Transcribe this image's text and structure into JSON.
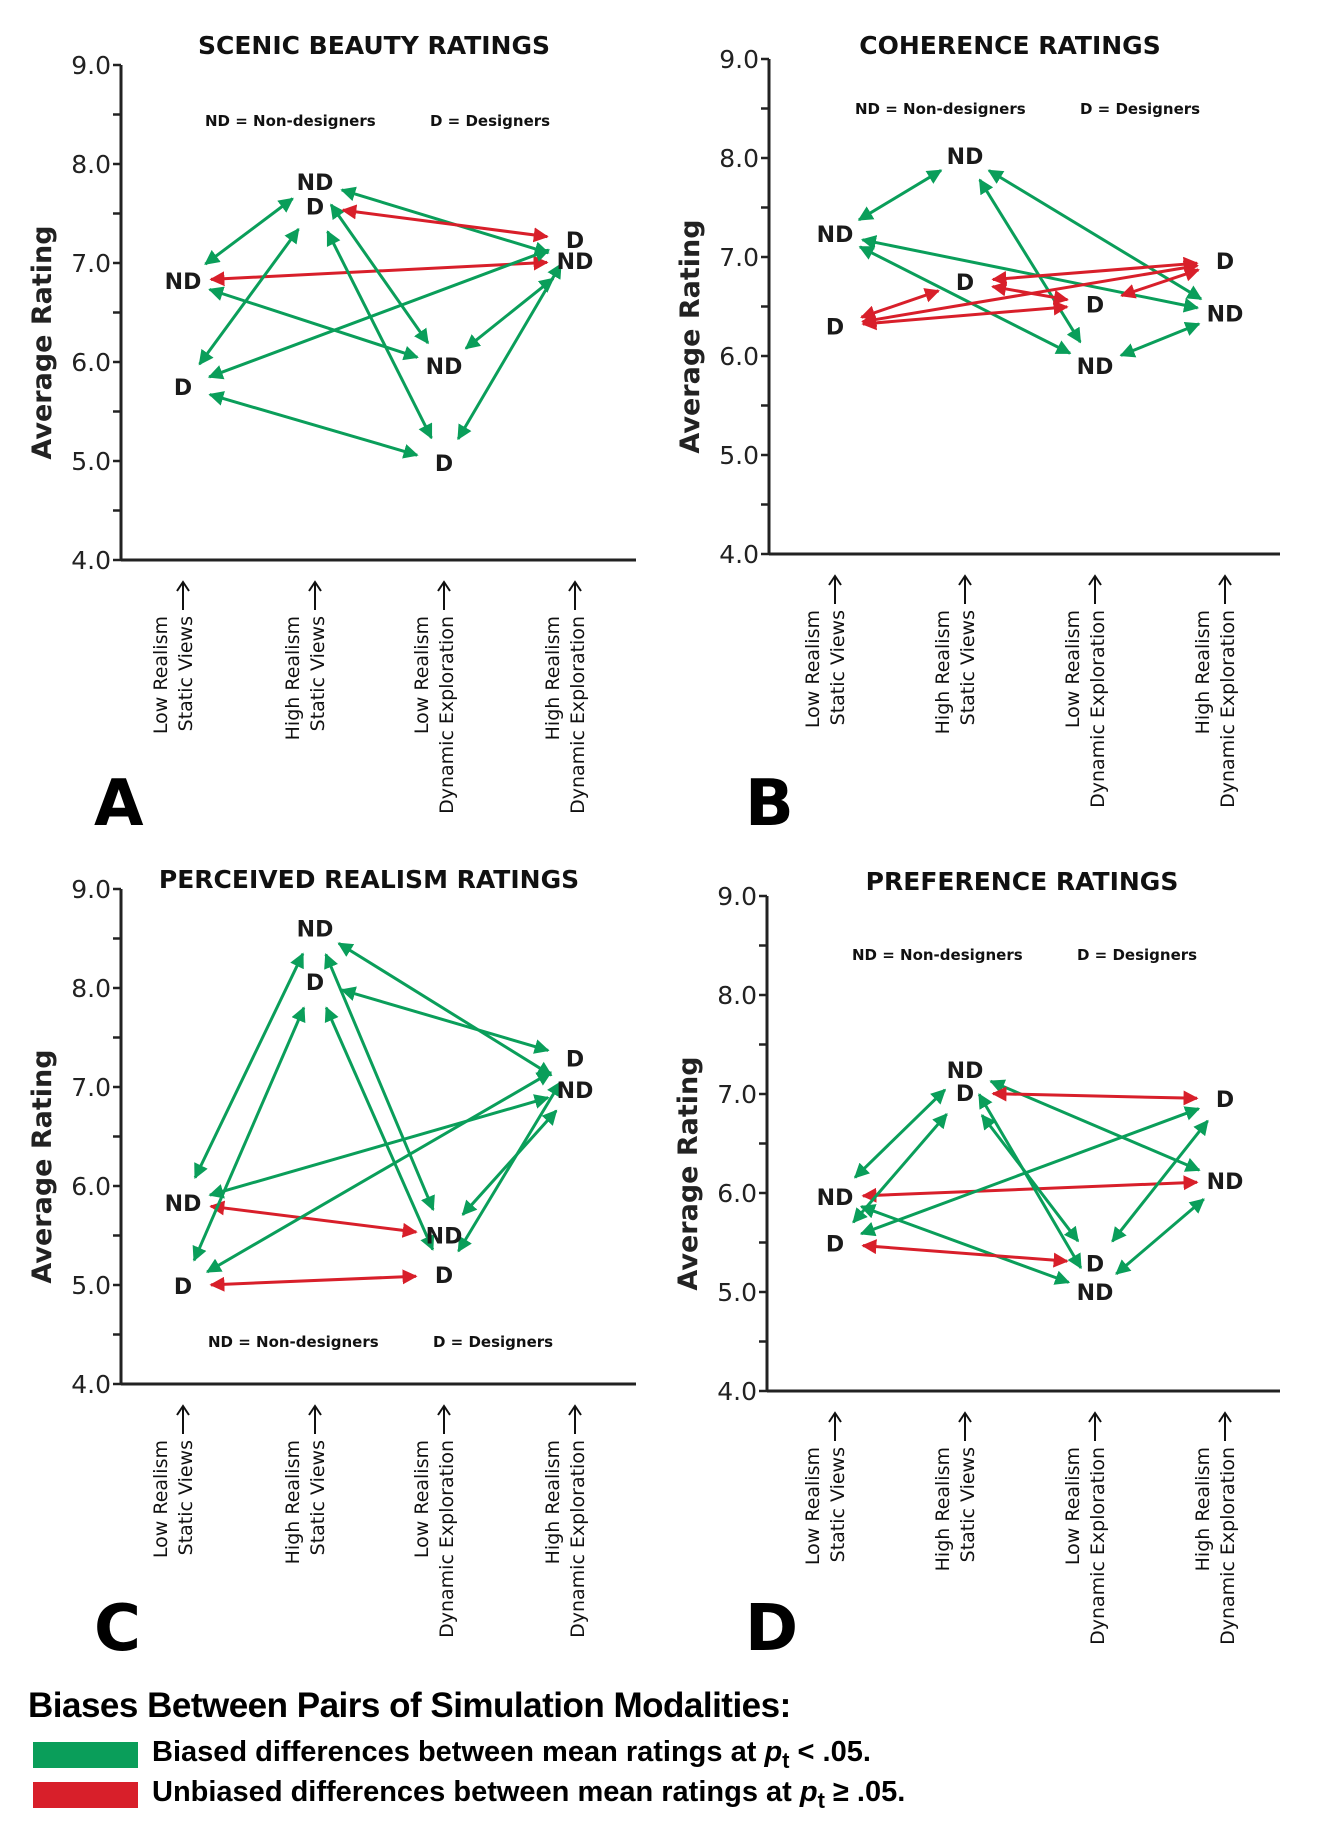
{
  "chart_data": [
    {
      "type": "scatter",
      "panel": "A",
      "title": "SCENIC BEAUTY RATINGS",
      "ylabel": "Average Rating",
      "ylim": [
        4.0,
        9.0
      ],
      "yticks": [
        "9.0",
        "8.0",
        "7.0",
        "6.0",
        "5.0",
        "4.0"
      ],
      "key": {
        "nd": "ND = Non-designers",
        "d": "D = Designers"
      },
      "key_position": "top",
      "categories": [
        "Low Realism\nStatic Views",
        "High Realism\nStatic Views",
        "Low Realism\nDynamic Exploration",
        "High Realism\nDynamic Exploration"
      ],
      "series": [
        {
          "name": "ND",
          "values": [
            6.82,
            7.82,
            5.96,
            7.02
          ]
        },
        {
          "name": "D",
          "values": [
            5.75,
            7.57,
            4.98,
            7.23
          ]
        }
      ],
      "comparisons": [
        {
          "group": "ND",
          "from": 0,
          "to": 1,
          "biased": true
        },
        {
          "group": "ND",
          "from": 0,
          "to": 2,
          "biased": true
        },
        {
          "group": "ND",
          "from": 0,
          "to": 3,
          "biased": false
        },
        {
          "group": "ND",
          "from": 1,
          "to": 2,
          "biased": true
        },
        {
          "group": "ND",
          "from": 1,
          "to": 3,
          "biased": true
        },
        {
          "group": "ND",
          "from": 2,
          "to": 3,
          "biased": true
        },
        {
          "group": "D",
          "from": 0,
          "to": 1,
          "biased": true
        },
        {
          "group": "D",
          "from": 0,
          "to": 2,
          "biased": true
        },
        {
          "group": "D",
          "from": 0,
          "to": 3,
          "biased": true
        },
        {
          "group": "D",
          "from": 1,
          "to": 2,
          "biased": true
        },
        {
          "group": "D",
          "from": 1,
          "to": 3,
          "biased": false
        },
        {
          "group": "D",
          "from": 2,
          "to": 3,
          "biased": true
        }
      ]
    },
    {
      "type": "scatter",
      "panel": "B",
      "title": "COHERENCE RATINGS",
      "ylabel": "Average Rating",
      "ylim": [
        4.0,
        9.0
      ],
      "yticks": [
        "9.0",
        "8.0",
        "7.0",
        "6.0",
        "5.0",
        "4.0"
      ],
      "key": {
        "nd": "ND = Non-designers",
        "d": "D = Designers"
      },
      "key_position": "top",
      "categories": [
        "Low Realism\nStatic Views",
        "High Realism\nStatic Views",
        "Low Realism\nDynamic Exploration",
        "High Realism\nDynamic Exploration"
      ],
      "series": [
        {
          "name": "ND",
          "values": [
            7.23,
            8.02,
            5.9,
            6.43
          ]
        },
        {
          "name": "D",
          "values": [
            6.3,
            6.75,
            6.52,
            6.96
          ]
        }
      ],
      "comparisons": [
        {
          "group": "ND",
          "from": 0,
          "to": 1,
          "biased": true
        },
        {
          "group": "ND",
          "from": 0,
          "to": 2,
          "biased": true
        },
        {
          "group": "ND",
          "from": 0,
          "to": 3,
          "biased": true
        },
        {
          "group": "ND",
          "from": 1,
          "to": 2,
          "biased": true
        },
        {
          "group": "ND",
          "from": 1,
          "to": 3,
          "biased": true
        },
        {
          "group": "ND",
          "from": 2,
          "to": 3,
          "biased": true
        },
        {
          "group": "D",
          "from": 0,
          "to": 1,
          "biased": false
        },
        {
          "group": "D",
          "from": 0,
          "to": 2,
          "biased": false
        },
        {
          "group": "D",
          "from": 0,
          "to": 3,
          "biased": false
        },
        {
          "group": "D",
          "from": 1,
          "to": 2,
          "biased": false
        },
        {
          "group": "D",
          "from": 1,
          "to": 3,
          "biased": false
        },
        {
          "group": "D",
          "from": 2,
          "to": 3,
          "biased": false
        }
      ]
    },
    {
      "type": "scatter",
      "panel": "C",
      "title": "PERCEIVED REALISM RATINGS",
      "ylabel": "Average Rating",
      "ylim": [
        4.0,
        9.0
      ],
      "yticks": [
        "9.0",
        "8.0",
        "7.0",
        "6.0",
        "5.0",
        "4.0"
      ],
      "key": {
        "nd": "ND = Non-designers",
        "d": "D = Designers"
      },
      "key_position": "bottom",
      "categories": [
        "Low Realism\nStatic Views",
        "High Realism\nStatic Views",
        "Low Realism\nDynamic Exploration",
        "High Realism\nDynamic Exploration"
      ],
      "series": [
        {
          "name": "ND",
          "values": [
            5.83,
            8.6,
            5.5,
            6.97
          ]
        },
        {
          "name": "D",
          "values": [
            4.99,
            8.06,
            5.1,
            7.29
          ]
        }
      ],
      "comparisons": [
        {
          "group": "ND",
          "from": 0,
          "to": 1,
          "biased": true
        },
        {
          "group": "ND",
          "from": 0,
          "to": 2,
          "biased": false
        },
        {
          "group": "ND",
          "from": 0,
          "to": 3,
          "biased": true
        },
        {
          "group": "ND",
          "from": 1,
          "to": 2,
          "biased": true
        },
        {
          "group": "ND",
          "from": 1,
          "to": 3,
          "biased": true
        },
        {
          "group": "ND",
          "from": 2,
          "to": 3,
          "biased": true
        },
        {
          "group": "D",
          "from": 0,
          "to": 1,
          "biased": true
        },
        {
          "group": "D",
          "from": 0,
          "to": 2,
          "biased": false
        },
        {
          "group": "D",
          "from": 0,
          "to": 3,
          "biased": true
        },
        {
          "group": "D",
          "from": 1,
          "to": 2,
          "biased": true
        },
        {
          "group": "D",
          "from": 1,
          "to": 3,
          "biased": true
        },
        {
          "group": "D",
          "from": 2,
          "to": 3,
          "biased": true
        }
      ]
    },
    {
      "type": "scatter",
      "panel": "D",
      "title": "PREFERENCE RATINGS",
      "ylabel": "Average Rating",
      "ylim": [
        4.0,
        9.0
      ],
      "yticks": [
        "9.0",
        "8.0",
        "7.0",
        "6.0",
        "5.0",
        "4.0"
      ],
      "key": {
        "nd": "ND = Non-designers",
        "d": "D = Designers"
      },
      "key_position": "top",
      "categories": [
        "Low Realism\nStatic Views",
        "High Realism\nStatic Views",
        "Low Realism\nDynamic Exploration",
        "High Realism\nDynamic Exploration"
      ],
      "series": [
        {
          "name": "ND",
          "values": [
            5.96,
            7.24,
            5.0,
            6.12
          ]
        },
        {
          "name": "D",
          "values": [
            5.49,
            7.01,
            5.29,
            6.95
          ]
        }
      ],
      "comparisons": [
        {
          "group": "ND",
          "from": 0,
          "to": 1,
          "biased": true
        },
        {
          "group": "ND",
          "from": 0,
          "to": 2,
          "biased": true
        },
        {
          "group": "ND",
          "from": 0,
          "to": 3,
          "biased": false
        },
        {
          "group": "ND",
          "from": 1,
          "to": 2,
          "biased": true
        },
        {
          "group": "ND",
          "from": 1,
          "to": 3,
          "biased": true
        },
        {
          "group": "ND",
          "from": 2,
          "to": 3,
          "biased": true
        },
        {
          "group": "D",
          "from": 0,
          "to": 1,
          "biased": true
        },
        {
          "group": "D",
          "from": 0,
          "to": 2,
          "biased": false
        },
        {
          "group": "D",
          "from": 0,
          "to": 3,
          "biased": true
        },
        {
          "group": "D",
          "from": 1,
          "to": 2,
          "biased": true
        },
        {
          "group": "D",
          "from": 1,
          "to": 3,
          "biased": false
        },
        {
          "group": "D",
          "from": 2,
          "to": 3,
          "biased": true
        }
      ]
    }
  ],
  "colors": {
    "biased": "#0a9e5a",
    "unbiased": "#d81f2a",
    "text": "#1a1a1a"
  },
  "legend": {
    "title": "Biases Between Pairs of Simulation Modalities:",
    "items": [
      {
        "label_prefix": "Biased differences between mean ratings at ",
        "p": "p",
        "sub": "t",
        "label_suffix": " < .05.",
        "color": "#0a9e5a"
      },
      {
        "label_prefix": "Unbiased differences between mean ratings at ",
        "p": "p",
        "sub": "t",
        "label_suffix": " ≥ .05.",
        "color": "#d81f2a"
      }
    ]
  }
}
